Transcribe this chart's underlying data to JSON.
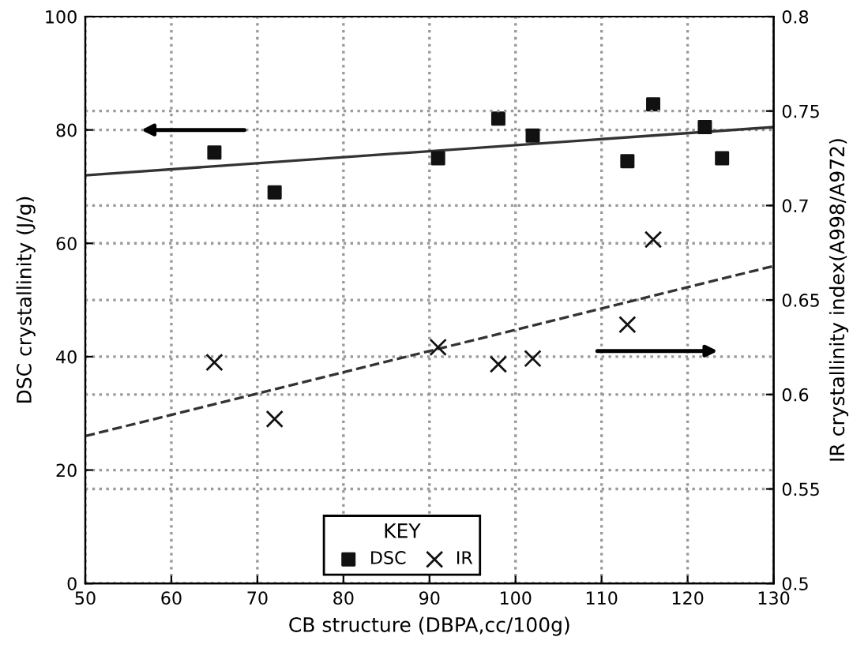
{
  "chart_data": {
    "type": "scatter",
    "xlabel": "CB structure (DBPA,cc/100g)",
    "ylabel": "DSC crystallinity (J/g)",
    "y2label": "IR crystallinity index(A998/A972)",
    "legend_title": "KEY",
    "xlim": [
      50,
      130
    ],
    "xticks": [
      50,
      60,
      70,
      80,
      90,
      100,
      110,
      120,
      130
    ],
    "ylim": [
      0,
      100
    ],
    "yticks": [
      0,
      20,
      40,
      60,
      80,
      100
    ],
    "y2lim": [
      0.5,
      0.8
    ],
    "y2ticks": [
      {
        "value": 0.5,
        "label": "0.5"
      },
      {
        "value": 0.55,
        "label": "0.55"
      },
      {
        "value": 0.6,
        "label": "0.6"
      },
      {
        "value": 0.65,
        "label": "0.65"
      },
      {
        "value": 0.7,
        "label": "0.7"
      },
      {
        "value": 0.75,
        "label": "0.75"
      },
      {
        "value": 0.8,
        "label": "0.8"
      }
    ],
    "grid": true,
    "legend": "bottom",
    "series": [
      {
        "name": "DSC",
        "marker": "square",
        "color": "#111111",
        "x": [
          65,
          72,
          91,
          98,
          102,
          113,
          116,
          122,
          124
        ],
        "values": [
          76,
          69,
          75,
          82,
          79,
          74.5,
          84.5,
          80.5,
          75
        ]
      },
      {
        "name": "IR",
        "marker": "cross",
        "color": "#111111",
        "axis": "y2",
        "x": [
          65,
          72,
          91,
          98,
          102,
          113,
          116
        ],
        "values": [
          0.617,
          0.587,
          0.625,
          0.616,
          0.619,
          0.637,
          0.682
        ]
      },
      {
        "type": "line",
        "line_style": "solid",
        "color": "#333333",
        "x": [
          50,
          130
        ],
        "values": [
          72,
          80.5
        ]
      },
      {
        "type": "line",
        "line_style": "dashed",
        "color": "#333333",
        "axis": "y2",
        "x": [
          50,
          130
        ],
        "values": [
          0.578,
          0.668
        ]
      }
    ]
  }
}
